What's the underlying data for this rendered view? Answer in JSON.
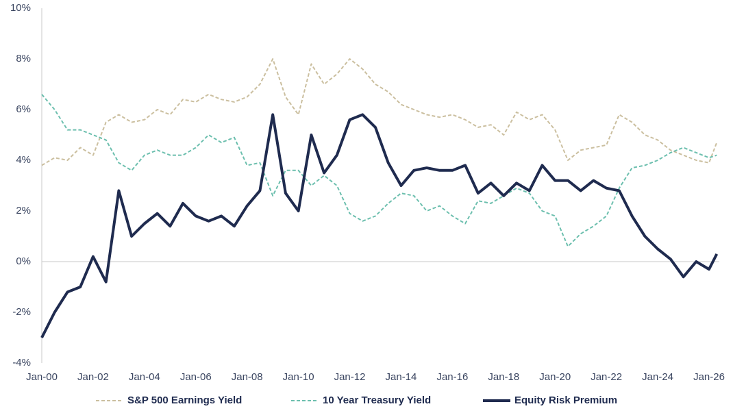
{
  "chart_data": {
    "type": "line",
    "x": [
      2000,
      2000.5,
      2001,
      2001.5,
      2002,
      2002.5,
      2003,
      2003.5,
      2004,
      2004.5,
      2005,
      2005.5,
      2006,
      2006.5,
      2007,
      2007.5,
      2008,
      2008.5,
      2009,
      2009.5,
      2010,
      2010.5,
      2011,
      2011.5,
      2012,
      2012.5,
      2013,
      2013.5,
      2014,
      2014.5,
      2015,
      2015.5,
      2016,
      2016.5,
      2017,
      2017.5,
      2018,
      2018.5,
      2019,
      2019.5,
      2020,
      2020.5,
      2021,
      2021.5,
      2022,
      2022.5,
      2023,
      2023.5,
      2024,
      2024.5,
      2025,
      2025.5,
      2026,
      2026.3
    ],
    "series": [
      {
        "name": "S&P 500 Earnings Yield",
        "color": "#cbbf9f",
        "dash": "dashed",
        "values": [
          3.8,
          4.1,
          4.0,
          4.5,
          4.2,
          5.5,
          5.8,
          5.5,
          5.6,
          6.0,
          5.8,
          6.4,
          6.3,
          6.6,
          6.4,
          6.3,
          6.5,
          7.0,
          8.0,
          6.5,
          5.8,
          7.8,
          7.0,
          7.4,
          8.0,
          7.6,
          7.0,
          6.7,
          6.2,
          6.0,
          5.8,
          5.7,
          5.8,
          5.6,
          5.3,
          5.4,
          5.0,
          5.9,
          5.6,
          5.8,
          5.2,
          4.0,
          4.4,
          4.5,
          4.6,
          5.8,
          5.5,
          5.0,
          4.8,
          4.4,
          4.2,
          4.0,
          3.9,
          4.7
        ]
      },
      {
        "name": "10 Year Treasury Yield",
        "color": "#6cbfae",
        "dash": "dashed",
        "values": [
          6.6,
          6.0,
          5.2,
          5.2,
          5.0,
          4.8,
          3.9,
          3.6,
          4.2,
          4.4,
          4.2,
          4.2,
          4.5,
          5.0,
          4.7,
          4.9,
          3.8,
          3.9,
          2.6,
          3.6,
          3.6,
          3.0,
          3.4,
          3.0,
          1.9,
          1.6,
          1.8,
          2.3,
          2.7,
          2.6,
          2.0,
          2.2,
          1.8,
          1.5,
          2.4,
          2.3,
          2.6,
          2.9,
          2.7,
          2.0,
          1.8,
          0.6,
          1.1,
          1.4,
          1.8,
          2.9,
          3.7,
          3.8,
          4.0,
          4.3,
          4.5,
          4.3,
          4.1,
          4.2
        ]
      },
      {
        "name": "Equity Risk Premium",
        "color": "#1f2b4f",
        "dash": "solid",
        "values": [
          -3.0,
          -2.0,
          -1.2,
          -1.0,
          0.2,
          -0.8,
          2.8,
          1.0,
          1.5,
          1.9,
          1.4,
          2.3,
          1.8,
          1.6,
          1.8,
          1.4,
          2.2,
          2.8,
          5.8,
          2.7,
          2.0,
          5.0,
          3.5,
          4.2,
          5.6,
          5.8,
          5.3,
          3.9,
          3.0,
          3.6,
          3.7,
          3.6,
          3.6,
          3.8,
          2.7,
          3.1,
          2.6,
          3.1,
          2.8,
          3.8,
          3.2,
          3.2,
          2.8,
          3.2,
          2.9,
          2.8,
          1.8,
          1.0,
          0.5,
          0.1,
          -0.6,
          0.0,
          -0.3,
          0.3
        ]
      }
    ],
    "xlim": [
      2000,
      2026.4
    ],
    "xticks": [
      {
        "value": 2000,
        "label": "Jan-00"
      },
      {
        "value": 2002,
        "label": "Jan-02"
      },
      {
        "value": 2004,
        "label": "Jan-04"
      },
      {
        "value": 2006,
        "label": "Jan-06"
      },
      {
        "value": 2008,
        "label": "Jan-08"
      },
      {
        "value": 2010,
        "label": "Jan-10"
      },
      {
        "value": 2012,
        "label": "Jan-12"
      },
      {
        "value": 2014,
        "label": "Jan-14"
      },
      {
        "value": 2016,
        "label": "Jan-16"
      },
      {
        "value": 2018,
        "label": "Jan-18"
      },
      {
        "value": 2020,
        "label": "Jan-20"
      },
      {
        "value": 2022,
        "label": "Jan-22"
      },
      {
        "value": 2024,
        "label": "Jan-24"
      },
      {
        "value": 2026,
        "label": "Jan-26"
      }
    ],
    "ylim": [
      -4,
      10
    ],
    "yticks": [
      {
        "value": -4,
        "label": "-4%"
      },
      {
        "value": -2,
        "label": "-2%"
      },
      {
        "value": 0,
        "label": "0%"
      },
      {
        "value": 2,
        "label": "2%"
      },
      {
        "value": 4,
        "label": "4%"
      },
      {
        "value": 6,
        "label": "6%"
      },
      {
        "value": 8,
        "label": "8%"
      },
      {
        "value": 10,
        "label": "10%"
      }
    ],
    "grid": false,
    "legend": "bottom"
  }
}
